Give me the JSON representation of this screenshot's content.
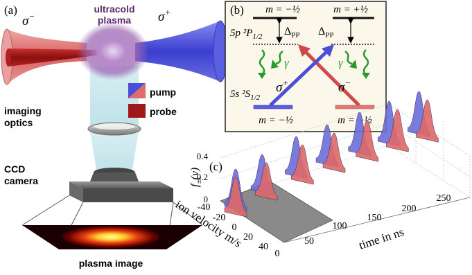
{
  "panel_a": {
    "label": "(a)",
    "plasma_title_1": "ultracold",
    "plasma_title_2": "plasma",
    "sigma_minus": "σ",
    "sigma_minus_sup": "−",
    "sigma_plus": "σ",
    "sigma_plus_sup": "+",
    "pump_label": "pump",
    "probe_label": "probe",
    "imaging_label_1": "imaging",
    "imaging_label_2": "optics",
    "ccd_label_1": "CCD",
    "ccd_label_2": "camera",
    "plasma_image_label": "plasma image",
    "colors": {
      "pump_red": "#e06b6b",
      "pump_blue": "#4b4fd8",
      "probe": "#a01818",
      "plasma": "#9a62b0"
    }
  },
  "panel_b": {
    "label": "(b)",
    "upper_left_m": "m = −½",
    "upper_right_m": "m = +½",
    "upper_state": "5p ²P",
    "upper_state_sub": "1/2",
    "lower_state": "5s ²S",
    "lower_state_sub": "1/2",
    "lower_left_m": "m = −½",
    "lower_right_m": "m = +½",
    "delta_left": "Δ",
    "delta_left_sub": "PP",
    "delta_right": "Δ",
    "delta_right_sub": "PP",
    "gamma_left": "γ",
    "gamma_right": "γ",
    "sigma_plus": "σ",
    "sigma_plus_sup": "+",
    "sigma_minus": "σ",
    "sigma_minus_sup": "−",
    "colors": {
      "background": "#fbf7ea",
      "sigma_plus": "#4b4fd8",
      "sigma_minus": "#d04848",
      "gamma": "#2a9a2a"
    }
  },
  "panel_c": {
    "label": "(c)",
    "y_axis_label": "f",
    "y_axis_sub": "±",
    "y_axis_arg": "(v)",
    "z_ticks": [
      "0",
      "0.2",
      "0.4"
    ],
    "velocity_ticks": [
      "-40",
      "-20",
      "0",
      "20",
      "40"
    ],
    "velocity_label": "ion velocity m/s",
    "time_ticks": [
      "0",
      "50",
      "100",
      "150",
      "200",
      "250"
    ],
    "time_label": "time in ns",
    "colors": {
      "plus": "#6a6ed8",
      "minus": "#dd6868",
      "mix": "#7a3a8a",
      "floor": "#8a8a8a"
    }
  }
}
